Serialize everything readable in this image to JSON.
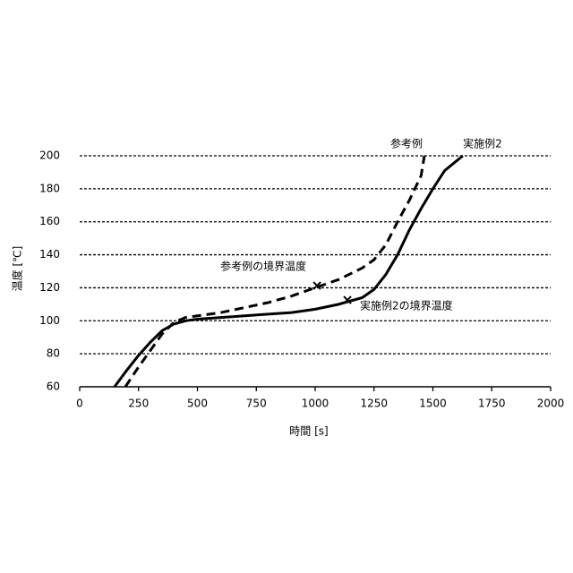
{
  "chart_data": {
    "type": "line",
    "xlabel": "時間 [s]",
    "ylabel": "温度 [℃]",
    "xlim": [
      0,
      2000
    ],
    "xticks": [
      0,
      250,
      500,
      750,
      1000,
      1250,
      1500,
      1750,
      2000
    ],
    "ylim": [
      60,
      200
    ],
    "yticks": [
      60,
      80,
      100,
      120,
      140,
      160,
      180,
      200
    ],
    "grid": true,
    "series": [
      {
        "name": "実施例2",
        "color": "#000000",
        "dash": false,
        "x": [
          148,
          200,
          250,
          300,
          350,
          400,
          450,
          500,
          600,
          700,
          800,
          900,
          1000,
          1100,
          1200,
          1250,
          1300,
          1350,
          1400,
          1450,
          1500,
          1550,
          1627
        ],
        "values": [
          60,
          70,
          79,
          87,
          94,
          98,
          100,
          101,
          102,
          103,
          104,
          105,
          107,
          110,
          114,
          119,
          128,
          140,
          155,
          168,
          180,
          191,
          200
        ],
        "boundary": {
          "label": "実施例2の境界温度",
          "x": 1137,
          "y": 112.6
        }
      },
      {
        "name": "参考例",
        "color": "#000000",
        "dash": true,
        "x": [
          194,
          250,
          300,
          350,
          400,
          450,
          500,
          600,
          700,
          800,
          900,
          1000,
          1100,
          1200,
          1250,
          1300,
          1350,
          1400,
          1450,
          1464
        ],
        "values": [
          60,
          72,
          82,
          92,
          99,
          102,
          103,
          105,
          108,
          111,
          115,
          120,
          125,
          132,
          137,
          146,
          160,
          173,
          188,
          200
        ],
        "boundary": {
          "label": "参考例の境界温度",
          "x": 1008,
          "y": 121.3
        }
      }
    ]
  }
}
